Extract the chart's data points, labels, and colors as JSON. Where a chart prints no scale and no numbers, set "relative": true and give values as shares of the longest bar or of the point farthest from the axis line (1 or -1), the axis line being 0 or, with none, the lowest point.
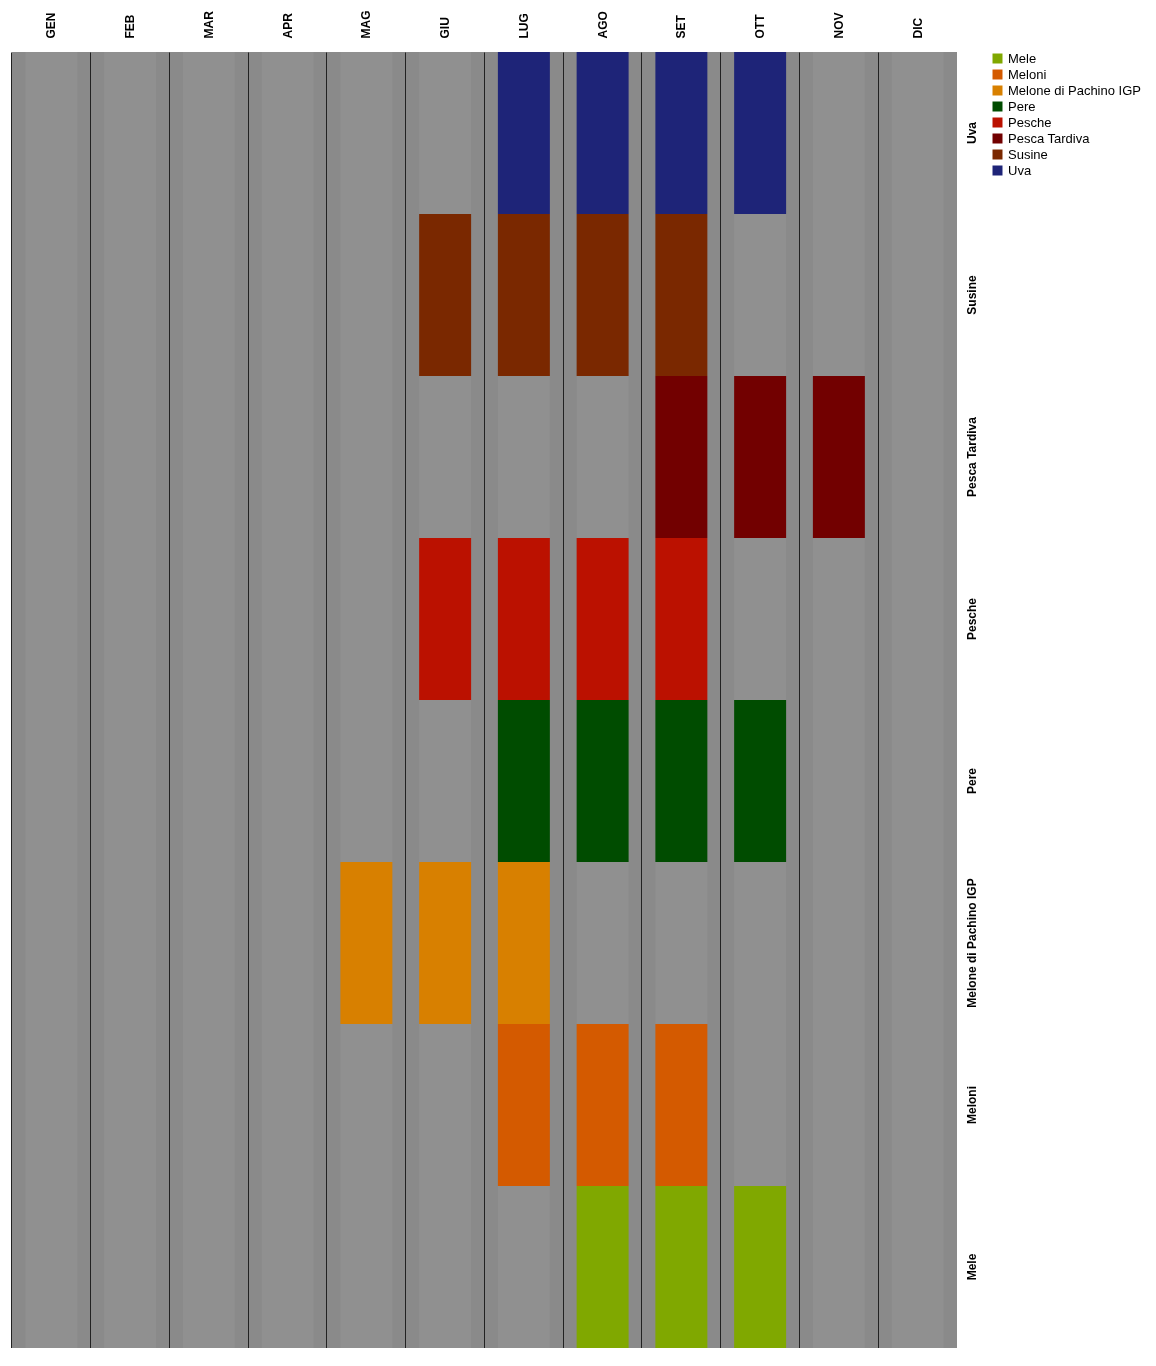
{
  "chart_data": {
    "type": "bar",
    "relative": true,
    "stacked": true,
    "grid": "x",
    "legend": "right",
    "categories": [
      "GEN",
      "FEB",
      "MAR",
      "APR",
      "MAG",
      "GIU",
      "LUG",
      "AGO",
      "SET",
      "OTT",
      "NOV",
      "DIC"
    ],
    "series": [
      {
        "name": "Mele",
        "color": "#80a800",
        "values": [
          0.125,
          0.125,
          0.125,
          0.125,
          0.125,
          0.125,
          0.125,
          0.125,
          0.125,
          0.125,
          0.125,
          0.125
        ],
        "colors": [
          "#909090",
          "#909090",
          "#909090",
          "#909090",
          "#909090",
          "#909090",
          "#909090",
          "#80a800",
          "#80a800",
          "#80a800",
          "#909090",
          "#909090"
        ]
      },
      {
        "name": "Meloni",
        "color": "#d45a00",
        "values": [
          0.125,
          0.125,
          0.125,
          0.125,
          0.125,
          0.125,
          0.125,
          0.125,
          0.125,
          0.125,
          0.125,
          0.125
        ],
        "colors": [
          "#909090",
          "#909090",
          "#909090",
          "#909090",
          "#909090",
          "#909090",
          "#d45a00",
          "#d45a00",
          "#d45a00",
          "#909090",
          "#909090",
          "#909090"
        ]
      },
      {
        "name": "Melone di Pachino IGP",
        "color": "#d88000",
        "values": [
          0.125,
          0.125,
          0.125,
          0.125,
          0.125,
          0.125,
          0.125,
          0.125,
          0.125,
          0.125,
          0.125,
          0.125
        ],
        "colors": [
          "#909090",
          "#909090",
          "#909090",
          "#909090",
          "#d88000",
          "#d88000",
          "#d88000",
          "#909090",
          "#909090",
          "#909090",
          "#909090",
          "#909090"
        ]
      },
      {
        "name": "Pere",
        "color": "#004c00",
        "values": [
          0.125,
          0.125,
          0.125,
          0.125,
          0.125,
          0.125,
          0.125,
          0.125,
          0.125,
          0.125,
          0.125,
          0.125
        ],
        "colors": [
          "#909090",
          "#909090",
          "#909090",
          "#909090",
          "#909090",
          "#909090",
          "#004c00",
          "#004c00",
          "#004c00",
          "#004c00",
          "#909090",
          "#909090"
        ]
      },
      {
        "name": "Pesche",
        "color": "#bb1100",
        "values": [
          0.125,
          0.125,
          0.125,
          0.125,
          0.125,
          0.125,
          0.125,
          0.125,
          0.125,
          0.125,
          0.125,
          0.125
        ],
        "colors": [
          "#909090",
          "#909090",
          "#909090",
          "#909090",
          "#909090",
          "#bb1100",
          "#bb1100",
          "#bb1100",
          "#bb1100",
          "#909090",
          "#909090",
          "#909090"
        ]
      },
      {
        "name": "Pesca Tardiva",
        "color": "#720000",
        "values": [
          0.125,
          0.125,
          0.125,
          0.125,
          0.125,
          0.125,
          0.125,
          0.125,
          0.125,
          0.125,
          0.125,
          0.125
        ],
        "colors": [
          "#909090",
          "#909090",
          "#909090",
          "#909090",
          "#909090",
          "#909090",
          "#909090",
          "#909090",
          "#720000",
          "#720000",
          "#720000",
          "#909090"
        ]
      },
      {
        "name": "Susine",
        "color": "#7a2800",
        "values": [
          0.125,
          0.125,
          0.125,
          0.125,
          0.125,
          0.125,
          0.125,
          0.125,
          0.125,
          0.125,
          0.125,
          0.125
        ],
        "colors": [
          "#909090",
          "#909090",
          "#909090",
          "#909090",
          "#909090",
          "#7a2800",
          "#7a2800",
          "#7a2800",
          "#7a2800",
          "#909090",
          "#909090",
          "#909090"
        ]
      },
      {
        "name": "Uva",
        "color": "#1e2478",
        "values": [
          0.125,
          0.125,
          0.125,
          0.125,
          0.125,
          0.125,
          0.125,
          0.125,
          0.125,
          0.125,
          0.125,
          0.125
        ],
        "colors": [
          "#909090",
          "#909090",
          "#909090",
          "#909090",
          "#909090",
          "#909090",
          "#1e2478",
          "#1e2478",
          "#1e2478",
          "#1e2478",
          "#909090",
          "#909090"
        ]
      }
    ]
  }
}
